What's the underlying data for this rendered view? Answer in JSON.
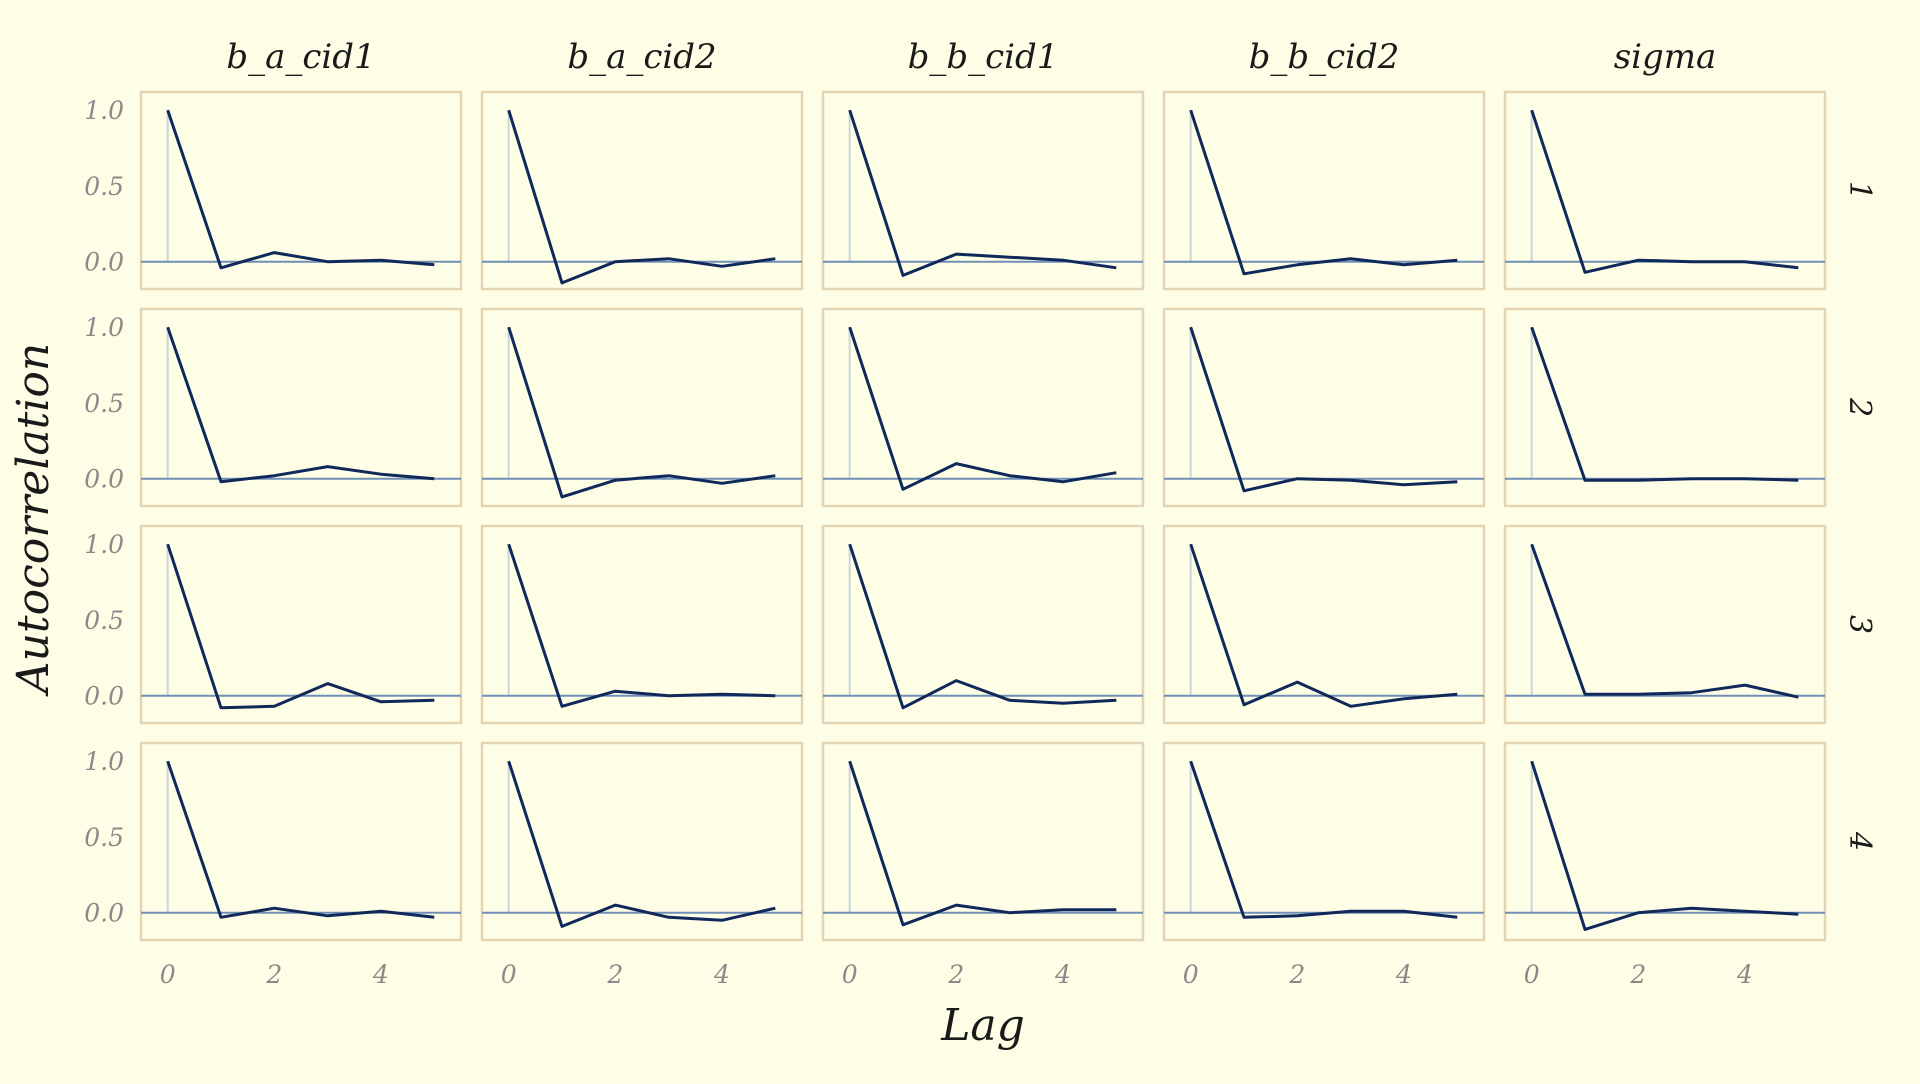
{
  "chart_data": {
    "type": "line",
    "title": "",
    "xlabel": "Lag",
    "ylabel": "Autocorrelation",
    "columns": [
      "b_a_cid1",
      "b_a_cid2",
      "b_b_cid1",
      "b_b_cid2",
      "sigma"
    ],
    "rows": [
      "1",
      "2",
      "3",
      "4"
    ],
    "x": [
      0,
      1,
      2,
      3,
      4,
      5
    ],
    "x_ticks": [
      "0",
      "2",
      "4"
    ],
    "y_ticks": [
      "0.0",
      "0.5",
      "1.0"
    ],
    "xlim": [
      -0.5,
      5.5
    ],
    "ylim": [
      -0.18,
      1.12
    ],
    "reference_line": 0,
    "panels": [
      [
        [
          1.0,
          -0.04,
          0.06,
          0.0,
          0.01,
          -0.02
        ],
        [
          1.0,
          -0.14,
          0.0,
          0.02,
          -0.03,
          0.02
        ],
        [
          1.0,
          -0.09,
          0.05,
          0.03,
          0.01,
          -0.04
        ],
        [
          1.0,
          -0.08,
          -0.02,
          0.02,
          -0.02,
          0.01
        ],
        [
          1.0,
          -0.07,
          0.01,
          0.0,
          0.0,
          -0.04
        ]
      ],
      [
        [
          1.0,
          -0.02,
          0.02,
          0.08,
          0.03,
          0.0
        ],
        [
          1.0,
          -0.12,
          -0.01,
          0.02,
          -0.03,
          0.02
        ],
        [
          1.0,
          -0.07,
          0.1,
          0.02,
          -0.02,
          0.04
        ],
        [
          1.0,
          -0.08,
          0.0,
          -0.01,
          -0.04,
          -0.02
        ],
        [
          1.0,
          -0.01,
          -0.01,
          0.0,
          0.0,
          -0.01
        ]
      ],
      [
        [
          1.0,
          -0.08,
          -0.07,
          0.08,
          -0.04,
          -0.03
        ],
        [
          1.0,
          -0.07,
          0.03,
          0.0,
          0.01,
          0.0
        ],
        [
          1.0,
          -0.08,
          0.1,
          -0.03,
          -0.05,
          -0.03
        ],
        [
          1.0,
          -0.06,
          0.09,
          -0.07,
          -0.02,
          0.01
        ],
        [
          1.0,
          0.01,
          0.01,
          0.02,
          0.07,
          -0.01
        ]
      ],
      [
        [
          1.0,
          -0.03,
          0.03,
          -0.02,
          0.01,
          -0.03
        ],
        [
          1.0,
          -0.09,
          0.05,
          -0.03,
          -0.05,
          0.03
        ],
        [
          1.0,
          -0.08,
          0.05,
          0.0,
          0.02,
          0.02
        ],
        [
          1.0,
          -0.03,
          -0.02,
          0.01,
          0.01,
          -0.03
        ],
        [
          1.0,
          -0.11,
          0.0,
          0.03,
          0.01,
          -0.01
        ]
      ]
    ]
  },
  "colors": {
    "background": "#fefee6",
    "panel_border": "#e3d4b3",
    "line": "#10285a",
    "zero_line": "#6f8fb5",
    "lag0_line": "#c9d4dc"
  }
}
